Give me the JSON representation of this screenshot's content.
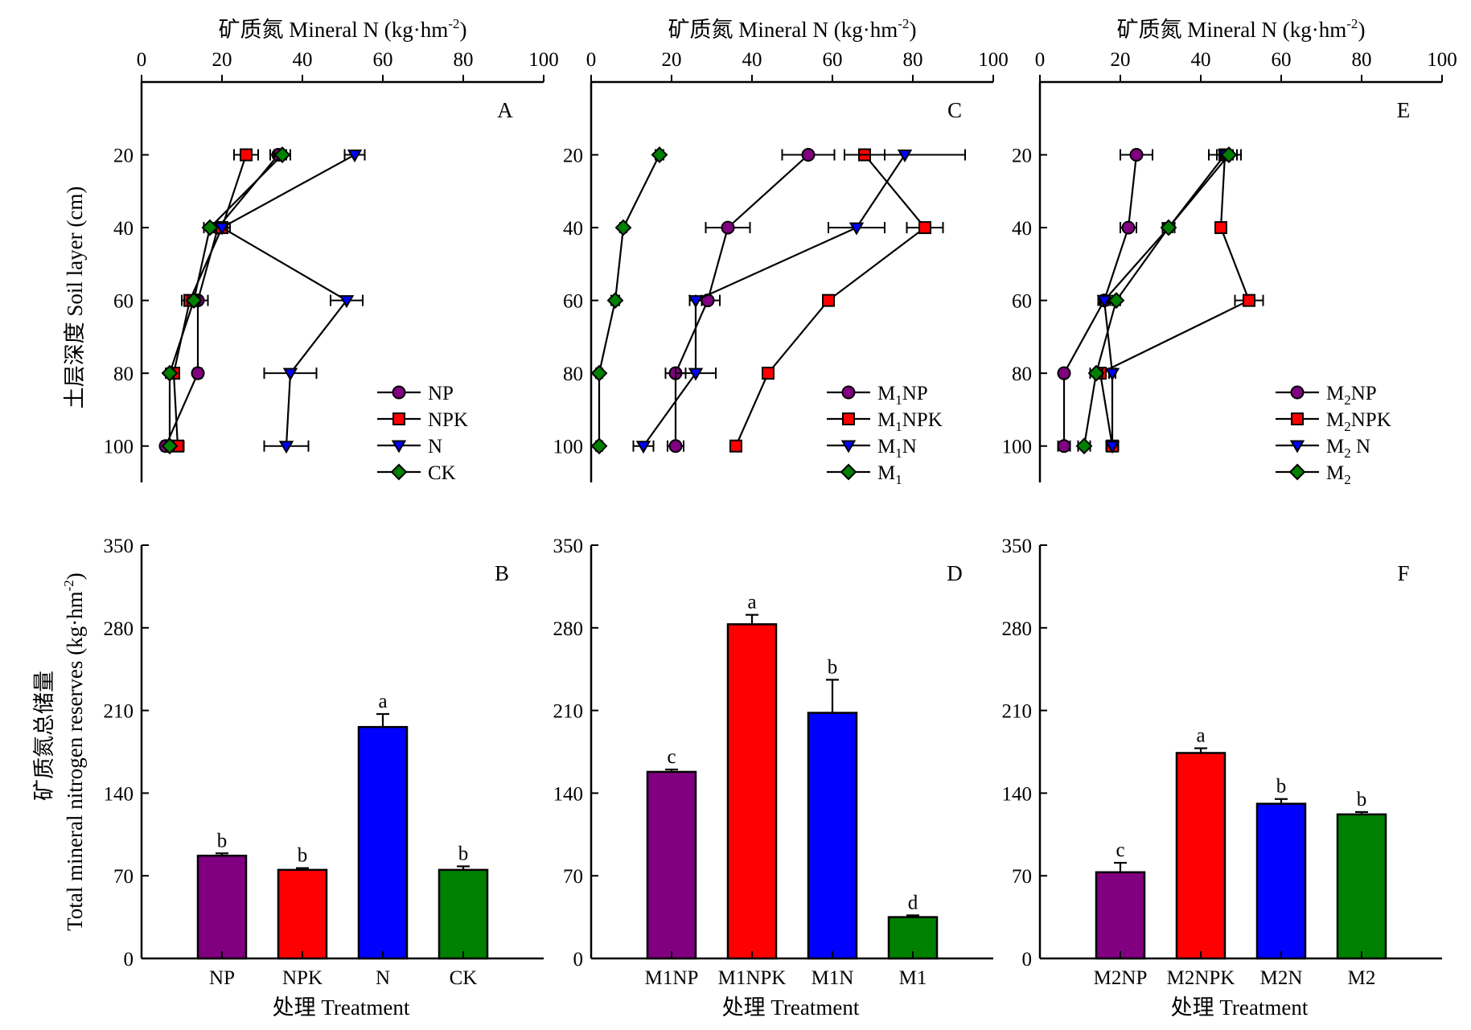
{
  "colors": {
    "NP": "#800080",
    "NPK": "#ff0000",
    "N": "#0000ff",
    "CK": "#008000"
  },
  "shared": {
    "top_xlabel_cn": "矿质氮",
    "top_xlabel_en": "Mineral N (kg·hm",
    "top_xlabel_sup": "-2",
    "top_ylabel": "土层深度 Soil layer (cm)",
    "bottom_xlabel": "处理 Treatment",
    "bottom_ylabel_line1": "矿质氮总储量",
    "bottom_ylabel_line2": "Total mineral nitrogen reserves (kg·hm",
    "bottom_ylabel_sup": "-2",
    "bottom_ylabel_end": ")"
  },
  "chart_data": [
    {
      "panel": "A",
      "type": "line",
      "xlabel": "矿质氮 Mineral N (kg·hm-2)",
      "ylabel": "土层深度 Soil layer (cm)",
      "xlim": [
        0,
        100
      ],
      "xticks": [
        0,
        20,
        40,
        60,
        80,
        100
      ],
      "ylim": [
        0,
        110
      ],
      "yticks": [
        20,
        40,
        60,
        80,
        100
      ],
      "y_inverted": true,
      "legend_position": "lower-right",
      "series": [
        {
          "name": "NP",
          "marker": "circle",
          "color_key": "NP",
          "depth": [
            20,
            40,
            60,
            80,
            100
          ],
          "values": [
            34,
            19,
            14,
            14,
            6
          ],
          "err": [
            2,
            1.5,
            2.5,
            1,
            1
          ]
        },
        {
          "name": "NPK",
          "marker": "square",
          "color_key": "NPK",
          "depth": [
            20,
            40,
            60,
            80,
            100
          ],
          "values": [
            26,
            20,
            12,
            8,
            9
          ],
          "err": [
            3,
            2,
            2,
            1,
            1.5
          ]
        },
        {
          "name": "N",
          "marker": "triangle-down",
          "color_key": "N",
          "depth": [
            20,
            40,
            60,
            80,
            100
          ],
          "values": [
            53,
            20,
            51,
            37,
            36
          ],
          "err": [
            2.5,
            2,
            4,
            6.5,
            5.5
          ]
        },
        {
          "name": "CK",
          "marker": "diamond",
          "color_key": "CK",
          "depth": [
            20,
            40,
            60,
            80,
            100
          ],
          "values": [
            35,
            17,
            13,
            7,
            7
          ],
          "err": [
            2,
            1.5,
            1.5,
            1,
            1
          ]
        }
      ]
    },
    {
      "panel": "C",
      "type": "line",
      "xlabel": "矿质氮 Mineral N (kg·hm-2)",
      "xlim": [
        0,
        100
      ],
      "xticks": [
        0,
        20,
        40,
        60,
        80,
        100
      ],
      "ylim": [
        0,
        110
      ],
      "yticks": [
        20,
        40,
        60,
        80,
        100
      ],
      "y_inverted": true,
      "legend_position": "lower-right",
      "series": [
        {
          "name": "M1NP",
          "label_main": "M",
          "label_sub": "1",
          "label_rest": "NP",
          "marker": "circle",
          "color_key": "NP",
          "depth": [
            20,
            40,
            60,
            80,
            100
          ],
          "values": [
            54,
            34,
            29,
            21,
            21
          ],
          "err": [
            6.5,
            5.5,
            3,
            2.5,
            2
          ]
        },
        {
          "name": "M1NPK",
          "label_main": "M",
          "label_sub": "1",
          "label_rest": "NPK",
          "marker": "square",
          "color_key": "NPK",
          "depth": [
            20,
            40,
            60,
            80,
            100
          ],
          "values": [
            68,
            83,
            59,
            44,
            36
          ],
          "err": [
            5,
            4.5,
            1,
            1,
            0.5
          ]
        },
        {
          "name": "M1N",
          "label_main": "M",
          "label_sub": "1",
          "label_rest": "N",
          "marker": "triangle-down",
          "color_key": "N",
          "depth": [
            20,
            40,
            60,
            80,
            100
          ],
          "values": [
            78,
            66,
            26,
            26,
            13
          ],
          "err": [
            15,
            7,
            1.5,
            5,
            2.5
          ]
        },
        {
          "name": "M1",
          "label_main": "M",
          "label_sub": "1",
          "label_rest": "",
          "marker": "diamond",
          "color_key": "CK",
          "depth": [
            20,
            40,
            60,
            80,
            100
          ],
          "values": [
            17,
            8,
            6,
            2,
            2
          ],
          "err": [
            1,
            0.8,
            1,
            0.8,
            0.8
          ]
        }
      ]
    },
    {
      "panel": "E",
      "type": "line",
      "xlabel": "矿质氮 Mineral N (kg·hm-2)",
      "xlim": [
        0,
        100
      ],
      "xticks": [
        0,
        20,
        40,
        60,
        80,
        100
      ],
      "ylim": [
        0,
        110
      ],
      "yticks": [
        20,
        40,
        60,
        80,
        100
      ],
      "y_inverted": true,
      "legend_position": "lower-right",
      "series": [
        {
          "name": "M2NP",
          "label_main": "M",
          "label_sub": "2",
          "label_rest": "NP",
          "marker": "circle",
          "color_key": "NP",
          "depth": [
            20,
            40,
            60,
            80,
            100
          ],
          "values": [
            24,
            22,
            16,
            6,
            6
          ],
          "err": [
            4,
            2,
            1.5,
            0.8,
            1.5
          ]
        },
        {
          "name": "M2NPK",
          "label_main": "M",
          "label_sub": "2",
          "label_rest": "NPK",
          "marker": "square",
          "color_key": "NPK",
          "depth": [
            20,
            40,
            60,
            80,
            100
          ],
          "values": [
            46,
            45,
            52,
            15,
            18
          ],
          "err": [
            4,
            0.5,
            3.5,
            1,
            1
          ]
        },
        {
          "name": "M2 N",
          "label_main": "M",
          "label_sub": "2",
          "label_rest": " N",
          "marker": "triangle-down",
          "color_key": "N",
          "depth": [
            20,
            40,
            60,
            80,
            100
          ],
          "values": [
            46,
            32,
            16,
            18,
            18
          ],
          "err": [
            2,
            1,
            1,
            0.8,
            1.5
          ]
        },
        {
          "name": "M2",
          "label_main": "M",
          "label_sub": "2",
          "label_rest": "",
          "marker": "diamond",
          "color_key": "CK",
          "depth": [
            20,
            40,
            60,
            80,
            100
          ],
          "values": [
            47,
            32,
            19,
            14,
            11
          ],
          "err": [
            2,
            1.5,
            1,
            1.5,
            1.5
          ]
        }
      ]
    },
    {
      "panel": "B",
      "type": "bar",
      "xlabel": "处理 Treatment",
      "ylabel": "矿质氮总储量 Total mineral nitrogen reserves (kg·hm-2)",
      "ylim": [
        0,
        350
      ],
      "yticks": [
        0,
        70,
        140,
        210,
        280,
        350
      ],
      "categories": [
        "NP",
        "NPK",
        "N",
        "CK"
      ],
      "color_keys": [
        "NP",
        "NPK",
        "N",
        "CK"
      ],
      "values": [
        87,
        75,
        196,
        75
      ],
      "err": [
        2,
        1.5,
        11,
        3
      ],
      "significance": [
        "b",
        "b",
        "a",
        "b"
      ]
    },
    {
      "panel": "D",
      "type": "bar",
      "xlabel": "处理 Treatment",
      "ylim": [
        0,
        350
      ],
      "yticks": [
        0,
        70,
        140,
        210,
        280,
        350
      ],
      "categories": [
        "M1NP",
        "M1NPK",
        "M1N",
        "M1"
      ],
      "color_keys": [
        "NP",
        "NPK",
        "N",
        "CK"
      ],
      "values": [
        158,
        283,
        208,
        35
      ],
      "err": [
        2,
        8,
        28,
        1.5
      ],
      "significance": [
        "c",
        "a",
        "b",
        "d"
      ]
    },
    {
      "panel": "F",
      "type": "bar",
      "xlabel": "处理 Treatment",
      "ylim": [
        0,
        350
      ],
      "yticks": [
        0,
        70,
        140,
        210,
        280,
        350
      ],
      "categories": [
        "M2NP",
        "M2NPK",
        "M2N",
        "M2"
      ],
      "color_keys": [
        "NP",
        "NPK",
        "N",
        "CK"
      ],
      "values": [
        73,
        174,
        131,
        122
      ],
      "err": [
        8,
        4,
        4,
        2
      ],
      "significance": [
        "c",
        "a",
        "b",
        "b"
      ]
    }
  ]
}
